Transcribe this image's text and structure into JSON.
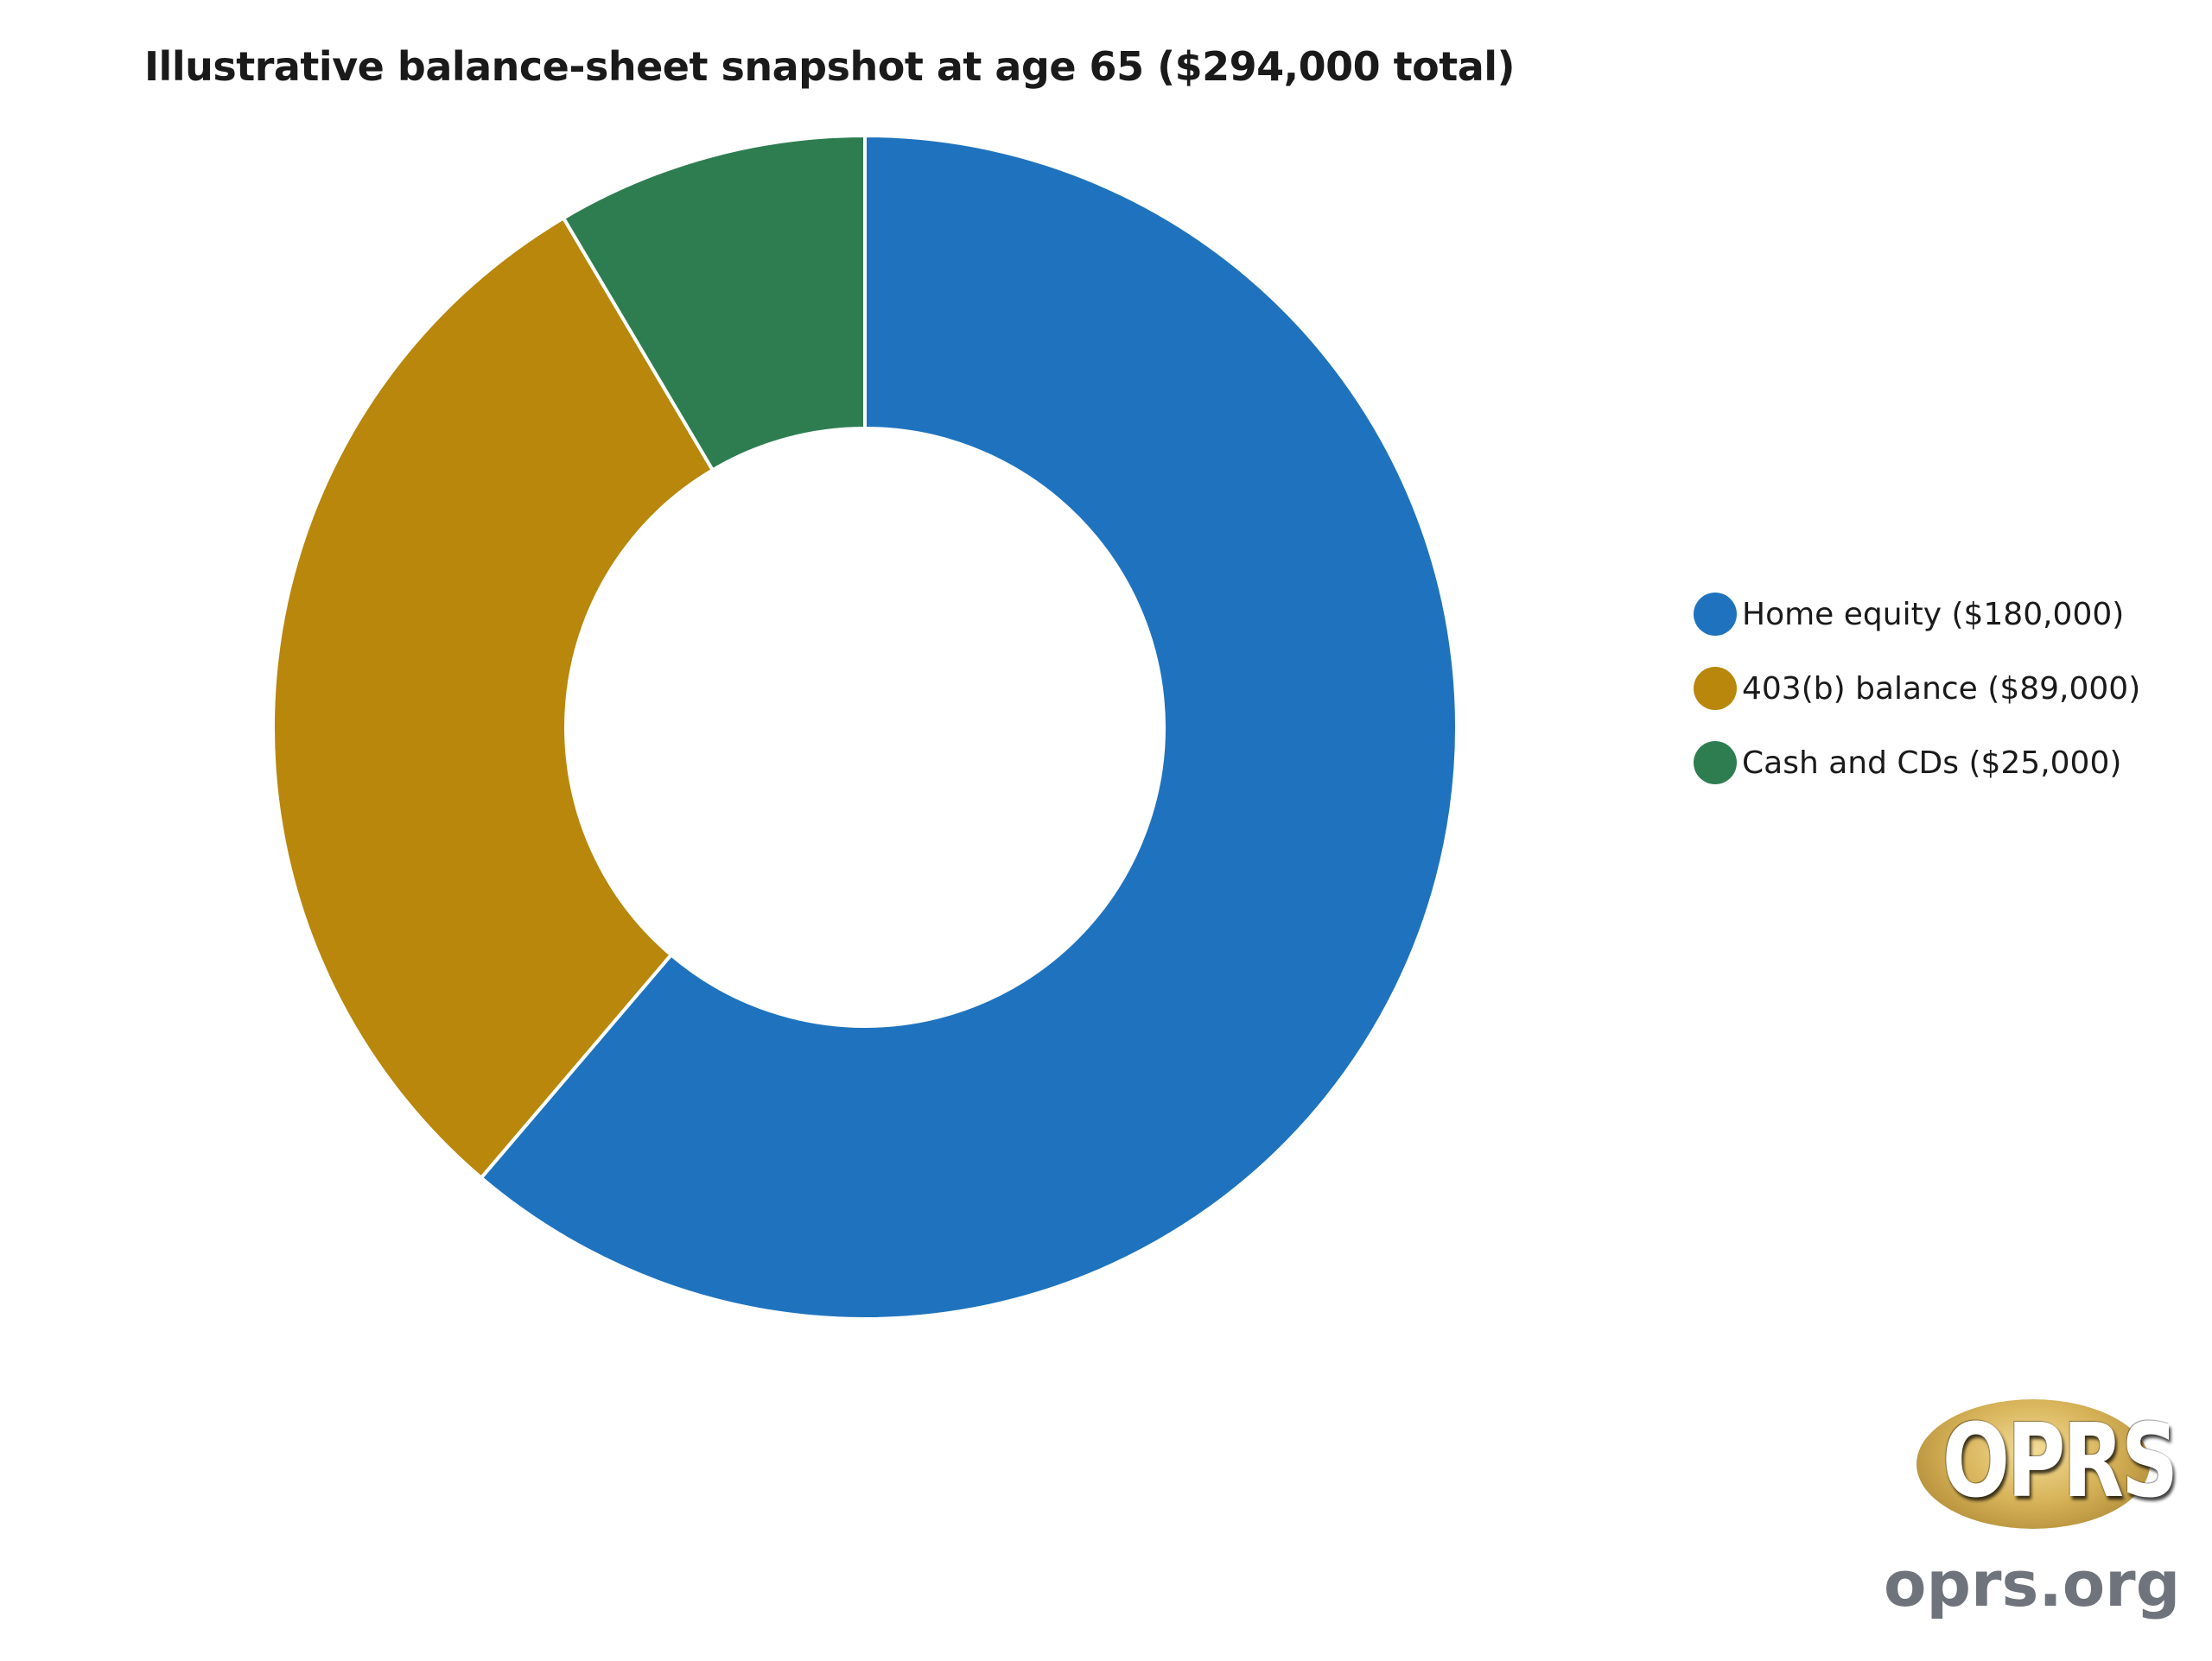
{
  "chart_data": {
    "type": "pie",
    "variant": "donut",
    "title": "Illustrative balance-sheet snapshot at age 65 ($294,000 total)",
    "categories": [
      "Home equity",
      "403(b) balance",
      "Cash and CDs"
    ],
    "values": [
      180000,
      89000,
      25000
    ],
    "colors": [
      "#1f73be",
      "#b8870b",
      "#2e7d51"
    ],
    "legend": {
      "position": "right",
      "entries": [
        "Home equity ($180,000)",
        "403(b) balance ($89,000)",
        "Cash and CDs ($25,000)"
      ]
    },
    "start_angle": "12 o'clock",
    "direction": "clockwise"
  },
  "branding": {
    "logo_text": "OPRS",
    "url": "oprs.org"
  }
}
